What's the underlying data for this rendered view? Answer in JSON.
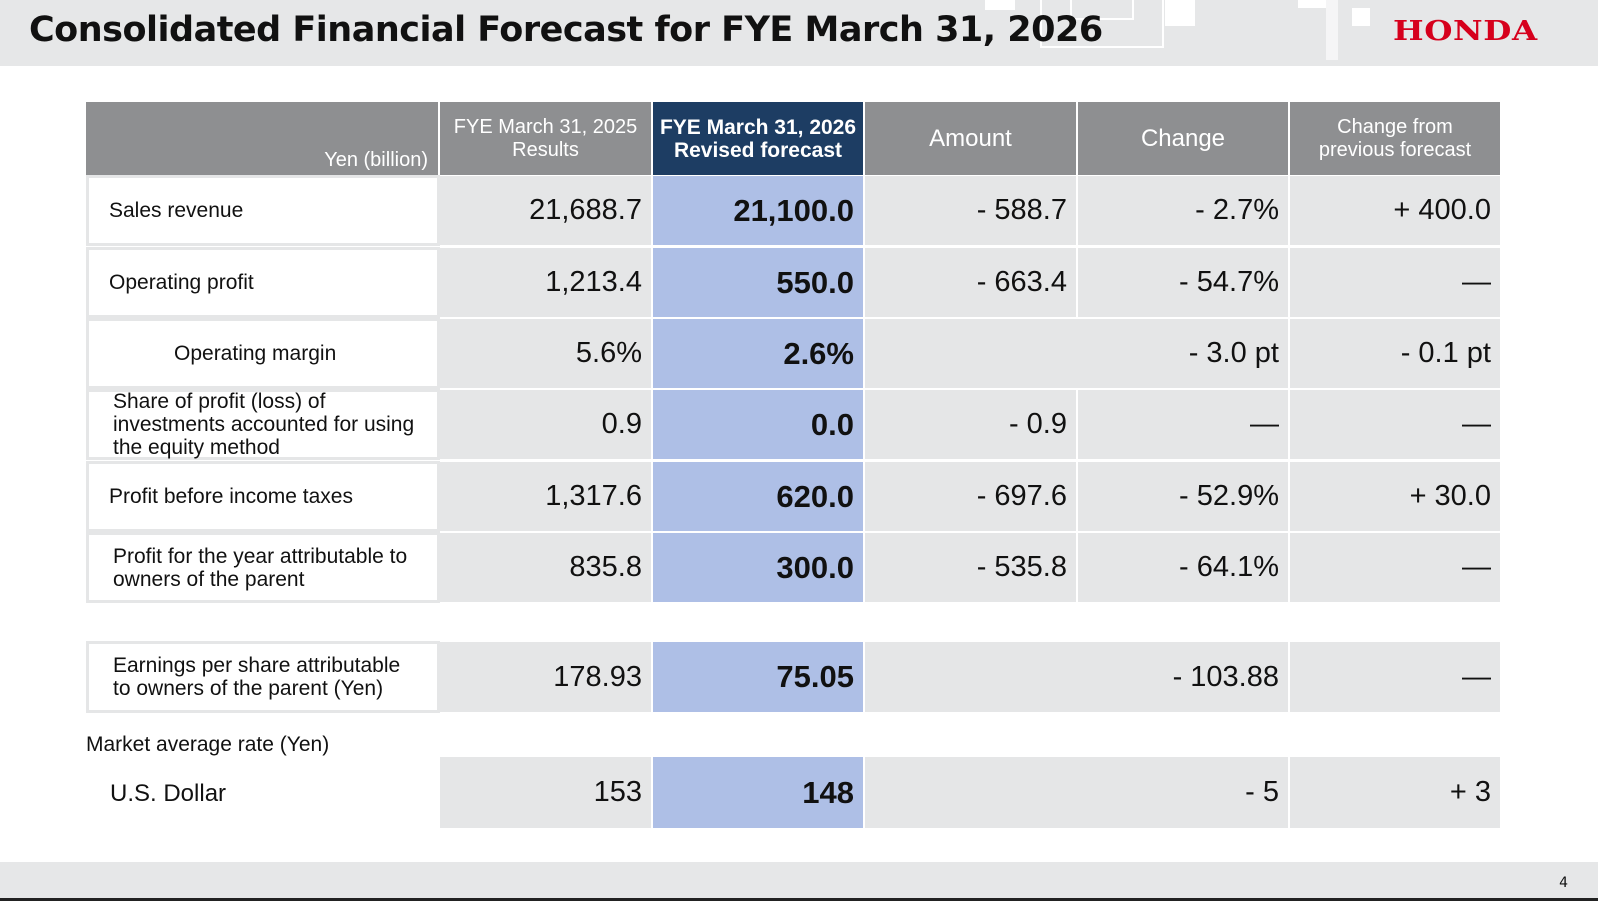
{
  "header": {
    "title": "Consolidated Financial Forecast for FYE March 31, 2026",
    "logo": "HONDA"
  },
  "table": {
    "unit": "Yen (billion)",
    "columns": {
      "results": "FYE March 31, 2025\nResults",
      "forecast": "FYE March 31, 2026\nRevised forecast",
      "amount": "Amount",
      "change": "Change",
      "prev": "Change from\nprevious forecast"
    },
    "rows": [
      {
        "label": "Sales revenue",
        "results": "21,688.7",
        "forecast": "21,100.0",
        "amount": "- 588.7",
        "change": "- 2.7%",
        "prev": "+ 400.0"
      },
      {
        "label": "Operating profit",
        "results": "1,213.4",
        "forecast": "550.0",
        "amount": "- 663.4",
        "change": "- 54.7%",
        "prev": "—"
      },
      {
        "label": "Operating margin",
        "results": "5.6%",
        "forecast": "2.6%",
        "change": "- 3.0 pt",
        "prev": "- 0.1 pt"
      },
      {
        "label": "Share of profit (loss) of\ninvestments accounted for using\nthe equity method",
        "results": "0.9",
        "forecast": "0.0",
        "amount": "- 0.9",
        "change": "—",
        "prev": "—"
      },
      {
        "label": "Profit before income taxes",
        "results": "1,317.6",
        "forecast": "620.0",
        "amount": "- 697.6",
        "change": "- 52.9%",
        "prev": "+ 30.0"
      },
      {
        "label": "Profit for the year attributable to\nowners of the parent",
        "results": "835.8",
        "forecast": "300.0",
        "amount": "- 535.8",
        "change": "- 64.1%",
        "prev": "—"
      }
    ],
    "eps": {
      "label": "Earnings per share attributable\nto owners of the parent (Yen)",
      "results": "178.93",
      "forecast": "75.05",
      "change": "- 103.88",
      "prev": "—"
    },
    "market_rate": {
      "title": "Market average rate (Yen)",
      "label": "U.S. Dollar",
      "results": "153",
      "forecast": "148",
      "change": "- 5",
      "prev": "+ 3"
    }
  },
  "footer": {
    "page": "4"
  }
}
